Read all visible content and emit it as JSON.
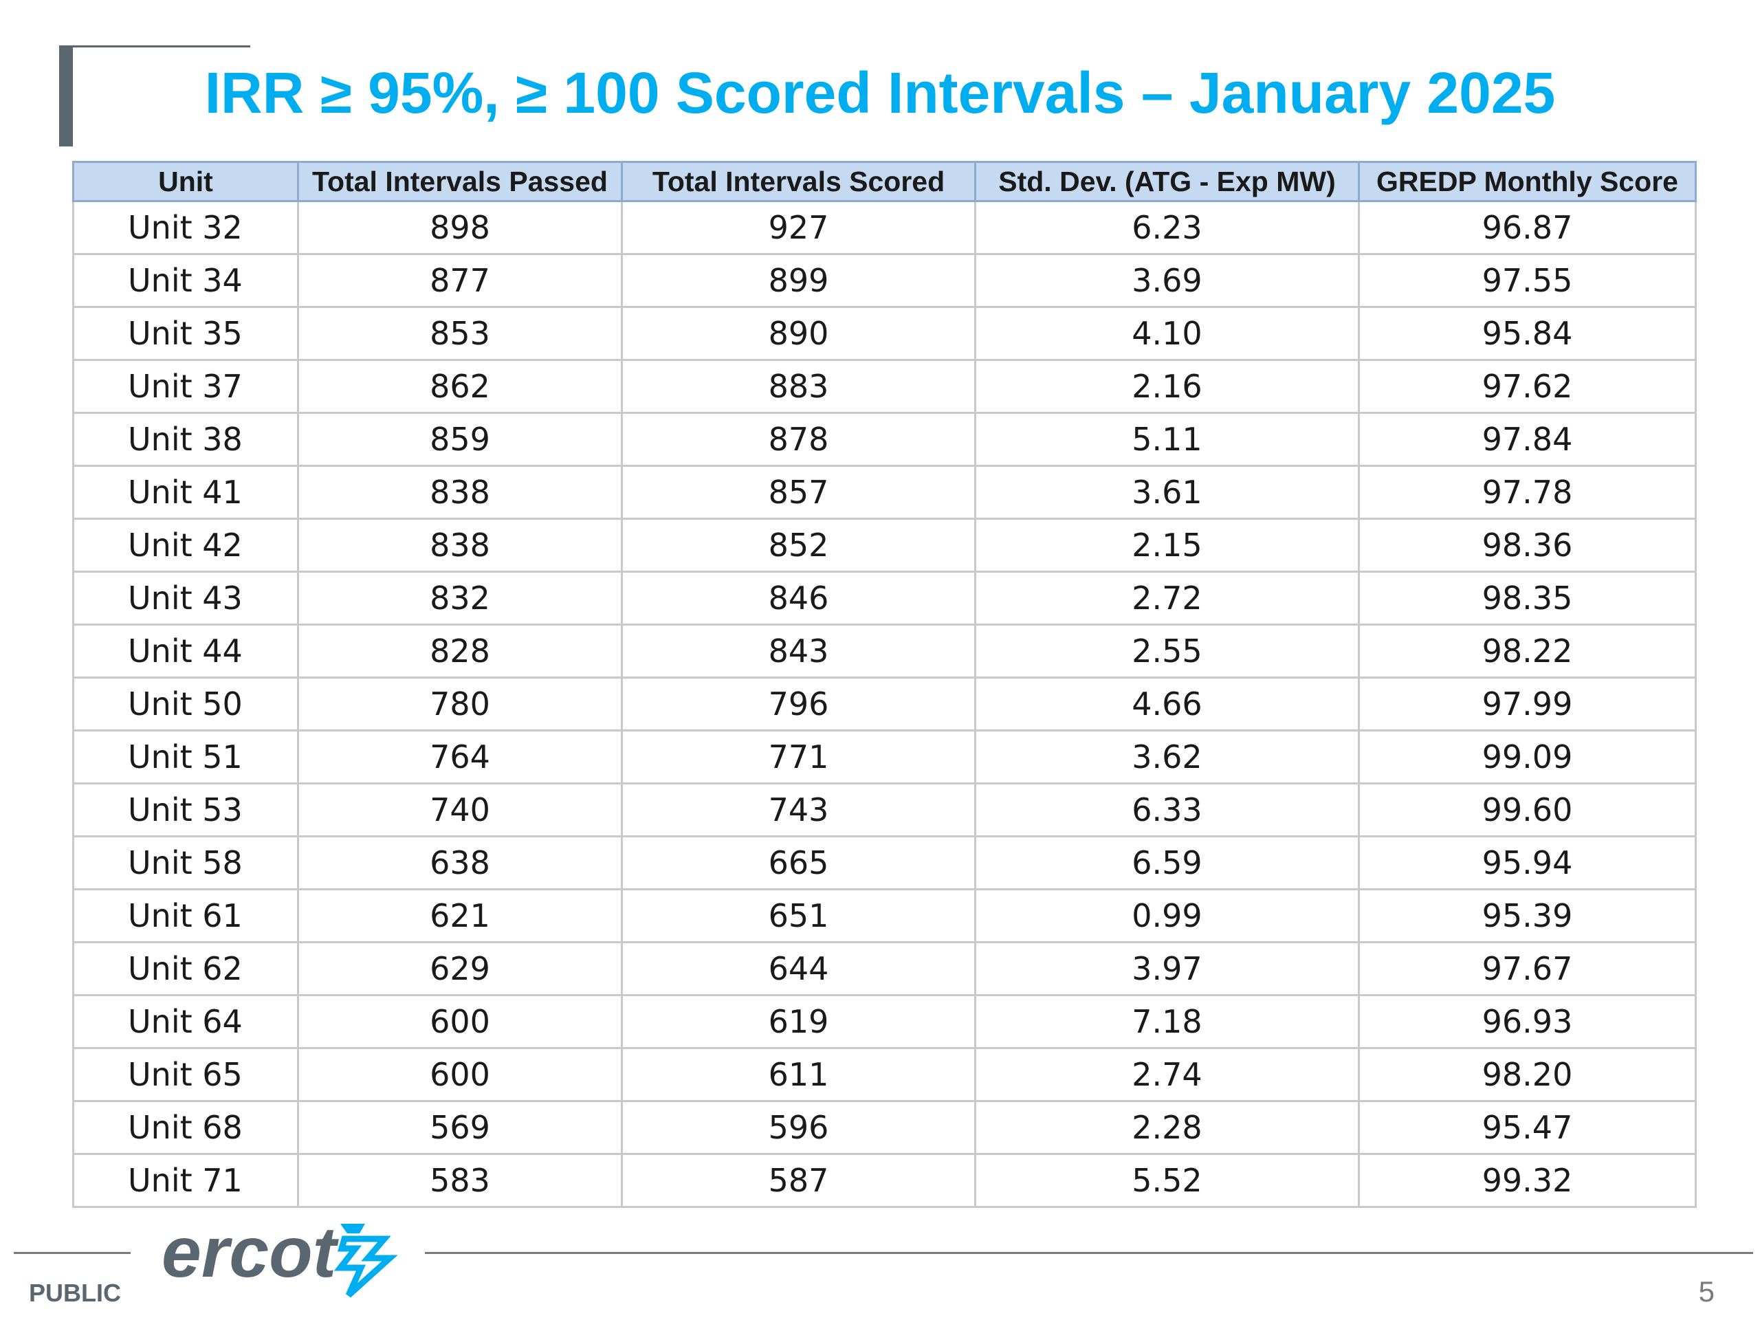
{
  "slide": {
    "title": "IRR ≥ 95%, ≥ 100 Scored Intervals – January 2025",
    "footer_label": "PUBLIC",
    "page_number": "5",
    "logo_text": "ercot",
    "logo_icon": "ercot-lightning-mark-icon",
    "accent_color": "#00aeef"
  },
  "table": {
    "columns": [
      "Unit",
      "Total Intervals Passed",
      "Total Intervals Scored",
      "Std. Dev. (ATG - Exp MW)",
      "GREDP Monthly Score"
    ],
    "rows": [
      [
        "Unit 32",
        "898",
        "927",
        "6.23",
        "96.87"
      ],
      [
        "Unit 34",
        "877",
        "899",
        "3.69",
        "97.55"
      ],
      [
        "Unit 35",
        "853",
        "890",
        "4.10",
        "95.84"
      ],
      [
        "Unit 37",
        "862",
        "883",
        "2.16",
        "97.62"
      ],
      [
        "Unit 38",
        "859",
        "878",
        "5.11",
        "97.84"
      ],
      [
        "Unit 41",
        "838",
        "857",
        "3.61",
        "97.78"
      ],
      [
        "Unit 42",
        "838",
        "852",
        "2.15",
        "98.36"
      ],
      [
        "Unit 43",
        "832",
        "846",
        "2.72",
        "98.35"
      ],
      [
        "Unit 44",
        "828",
        "843",
        "2.55",
        "98.22"
      ],
      [
        "Unit 50",
        "780",
        "796",
        "4.66",
        "97.99"
      ],
      [
        "Unit 51",
        "764",
        "771",
        "3.62",
        "99.09"
      ],
      [
        "Unit 53",
        "740",
        "743",
        "6.33",
        "99.60"
      ],
      [
        "Unit 58",
        "638",
        "665",
        "6.59",
        "95.94"
      ],
      [
        "Unit 61",
        "621",
        "651",
        "0.99",
        "95.39"
      ],
      [
        "Unit 62",
        "629",
        "644",
        "3.97",
        "97.67"
      ],
      [
        "Unit 64",
        "600",
        "619",
        "7.18",
        "96.93"
      ],
      [
        "Unit 65",
        "600",
        "611",
        "2.74",
        "98.20"
      ],
      [
        "Unit 68",
        "569",
        "596",
        "2.28",
        "95.47"
      ],
      [
        "Unit 71",
        "583",
        "587",
        "5.52",
        "99.32"
      ]
    ]
  }
}
